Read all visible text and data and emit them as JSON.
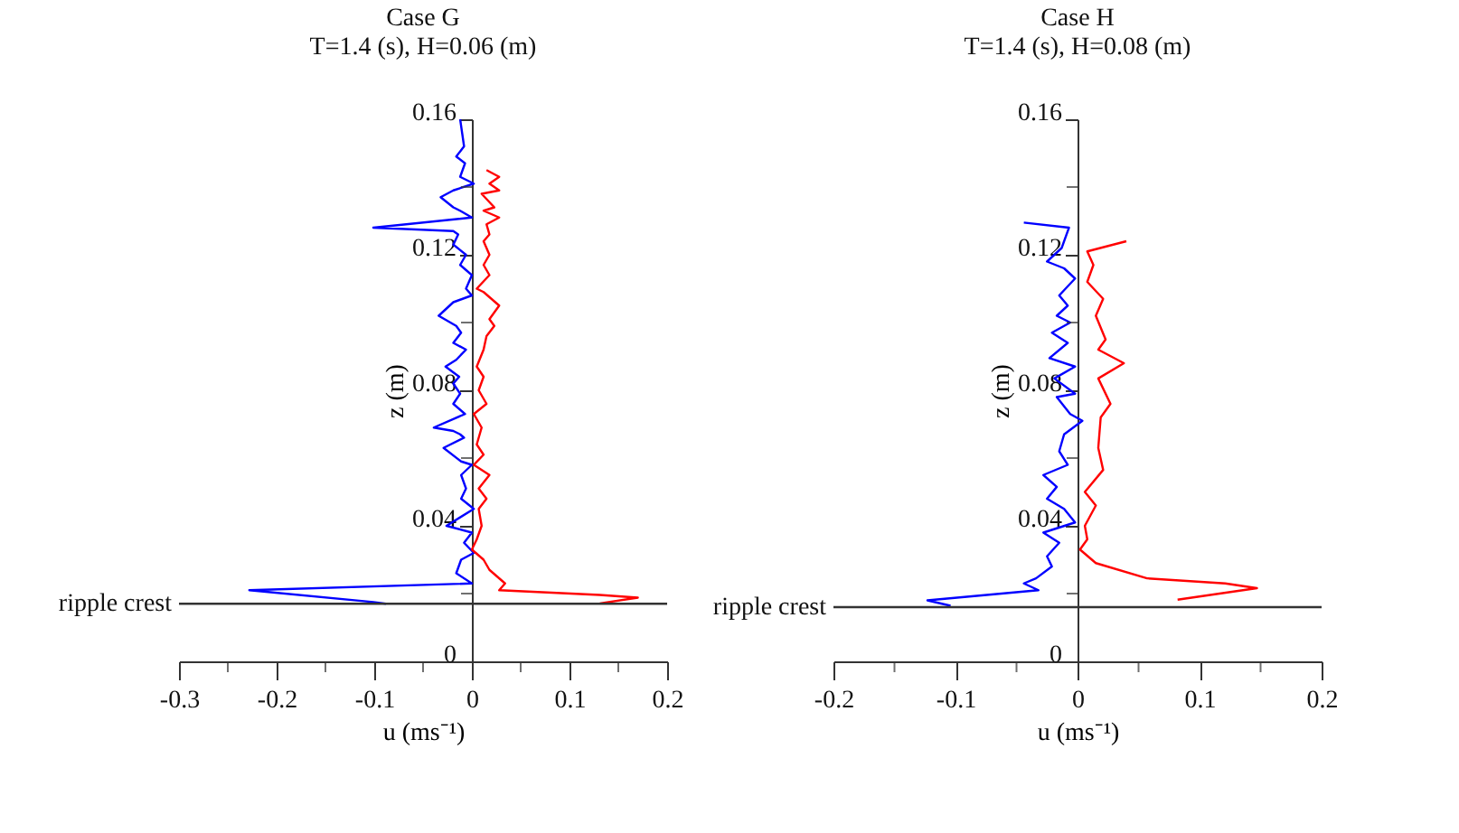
{
  "chart_data": [
    {
      "type": "line",
      "title": "Case G",
      "subtitle": "T=1.4 (s), H=0.06 (m)",
      "xlabel": "u (ms⁻¹)",
      "ylabel": "z (m)",
      "xlim": [
        -0.3,
        0.2
      ],
      "xticks": [
        -0.3,
        {
          "value": -0.25,
          "label": null
        },
        -0.2,
        {
          "value": -0.15,
          "label": null
        },
        -0.1,
        {
          "value": -0.05,
          "label": null
        },
        0,
        {
          "value": 0.05,
          "label": null
        },
        0.1,
        {
          "value": 0.15,
          "label": null
        },
        0.2
      ],
      "ylim": [
        0,
        0.16
      ],
      "yticks": [
        0,
        {
          "value": 0.02,
          "label": null
        },
        0.04,
        {
          "value": 0.06,
          "label": null
        },
        0.08,
        {
          "value": 0.1,
          "label": null
        },
        0.12,
        {
          "value": 0.14,
          "label": null
        },
        0.16
      ],
      "ref_lines": [
        {
          "axis": "y",
          "value": 0.017,
          "label": "ripple crest"
        }
      ],
      "series": [
        {
          "color": "#0000ff",
          "x": [
            -0.012,
            -0.008,
            -0.016,
            -0.007,
            -0.012,
            0.002,
            -0.019,
            -0.032,
            -0.019,
            -0.012,
            0,
            -0.101,
            -0.019,
            -0.014,
            -0.019,
            -0.006,
            -0.012,
            0,
            -0.006,
            0,
            -0.019,
            -0.034,
            -0.016,
            -0.011,
            -0.019,
            -0.006,
            -0.016,
            -0.027,
            -0.013,
            -0.019,
            -0.012,
            -0.019,
            -0.007,
            -0.039,
            -0.019,
            -0.012,
            -0.008,
            -0.029,
            -0.011,
            0,
            -0.011,
            -0.006,
            -0.011,
            0.002,
            -0.026,
            0,
            -0.008,
            0.002,
            -0.011,
            -0.016,
            0,
            -0.228,
            -0.101,
            -0.088
          ],
          "values": [
            0.16,
            0.152,
            0.149,
            0.147,
            0.143,
            0.141,
            0.139,
            0.137,
            0.134,
            0.133,
            0.131,
            0.128,
            0.127,
            0.126,
            0.123,
            0.12,
            0.117,
            0.114,
            0.11,
            0.108,
            0.106,
            0.102,
            0.099,
            0.097,
            0.094,
            0.092,
            0.089,
            0.087,
            0.084,
            0.082,
            0.079,
            0.076,
            0.073,
            0.069,
            0.068,
            0.067,
            0.066,
            0.063,
            0.059,
            0.058,
            0.055,
            0.051,
            0.048,
            0.045,
            0.04,
            0.038,
            0.035,
            0.032,
            0.03,
            0.026,
            0.023,
            0.021,
            0.0175,
            0.017
          ]
        },
        {
          "color": "#ff0000",
          "x": [
            0.015,
            0.028,
            0.018,
            0.028,
            0.01,
            0.023,
            0.012,
            0.028,
            0.015,
            0.018,
            0.012,
            0.018,
            0.012,
            0.018,
            0.005,
            0.012,
            0.028,
            0.018,
            0.023,
            0.015,
            0.012,
            0.005,
            0.012,
            0.007,
            0.015,
            0.002,
            0.01,
            0.005,
            0.012,
            0.002,
            0.018,
            0.007,
            0.015,
            0.007,
            0.01,
            0.005,
            0,
            0.012,
            0.018,
            0.034,
            0.028,
            0.131,
            0.17,
            0.131
          ],
          "values": [
            0.145,
            0.143,
            0.141,
            0.139,
            0.138,
            0.134,
            0.133,
            0.131,
            0.129,
            0.126,
            0.124,
            0.12,
            0.117,
            0.114,
            0.11,
            0.109,
            0.105,
            0.101,
            0.099,
            0.096,
            0.092,
            0.087,
            0.084,
            0.08,
            0.076,
            0.073,
            0.069,
            0.064,
            0.061,
            0.058,
            0.055,
            0.051,
            0.048,
            0.045,
            0.04,
            0.036,
            0.033,
            0.03,
            0.027,
            0.023,
            0.021,
            0.0196,
            0.0188,
            0.0171
          ]
        }
      ]
    },
    {
      "type": "line",
      "title": "Case H",
      "subtitle": "T=1.4 (s), H=0.08 (m)",
      "xlabel": "u (ms⁻¹)",
      "ylabel": "z (m)",
      "xlim": [
        -0.2,
        0.2
      ],
      "xticks": [
        -0.2,
        {
          "value": -0.15,
          "label": null
        },
        -0.1,
        {
          "value": -0.05,
          "label": null
        },
        0,
        {
          "value": 0.05,
          "label": null
        },
        0.1,
        {
          "value": 0.15,
          "label": null
        },
        0.2
      ],
      "ylim": [
        0,
        0.16
      ],
      "yticks": [
        0,
        {
          "value": 0.02,
          "label": null
        },
        0.04,
        {
          "value": 0.06,
          "label": null
        },
        0.08,
        {
          "value": 0.1,
          "label": null
        },
        0.12,
        {
          "value": 0.14,
          "label": null
        },
        0.16
      ],
      "ref_lines": [
        {
          "axis": "y",
          "value": 0.016,
          "label": "ripple crest"
        }
      ],
      "series": [
        {
          "color": "#0000ff",
          "x": [
            -0.044,
            -0.007,
            -0.013,
            -0.025,
            -0.011,
            -0.002,
            -0.015,
            -0.008,
            -0.017,
            -0.006,
            -0.021,
            -0.008,
            -0.023,
            -0.002,
            -0.019,
            -0.002,
            -0.017,
            -0.006,
            0.004,
            -0.011,
            -0.015,
            -0.008,
            -0.028,
            -0.017,
            -0.025,
            -0.011,
            -0.002,
            -0.028,
            -0.015,
            -0.025,
            -0.021,
            -0.034,
            -0.044,
            -0.032,
            -0.123,
            -0.104
          ],
          "values": [
            0.1295,
            0.128,
            0.122,
            0.118,
            0.116,
            0.113,
            0.108,
            0.105,
            0.102,
            0.1,
            0.097,
            0.094,
            0.0895,
            0.087,
            0.0835,
            0.079,
            0.078,
            0.073,
            0.071,
            0.067,
            0.062,
            0.058,
            0.055,
            0.0515,
            0.048,
            0.045,
            0.041,
            0.038,
            0.035,
            0.031,
            0.028,
            0.0245,
            0.023,
            0.021,
            0.018,
            0.0164
          ]
        },
        {
          "color": "#ff0000",
          "x": [
            0.04,
            0.008,
            0.013,
            0.008,
            0.021,
            0.015,
            0.023,
            0.017,
            0.038,
            0.017,
            0.027,
            0.019,
            0.017,
            0.021,
            0.006,
            0.015,
            0.006,
            0.008,
            0.002,
            0.015,
            0.057,
            0.121,
            0.147,
            0.082
          ],
          "values": [
            0.124,
            0.121,
            0.117,
            0.112,
            0.107,
            0.102,
            0.095,
            0.092,
            0.088,
            0.0835,
            0.076,
            0.072,
            0.063,
            0.0565,
            0.05,
            0.046,
            0.04,
            0.036,
            0.033,
            0.029,
            0.0245,
            0.023,
            0.0216,
            0.0182
          ]
        }
      ]
    }
  ]
}
